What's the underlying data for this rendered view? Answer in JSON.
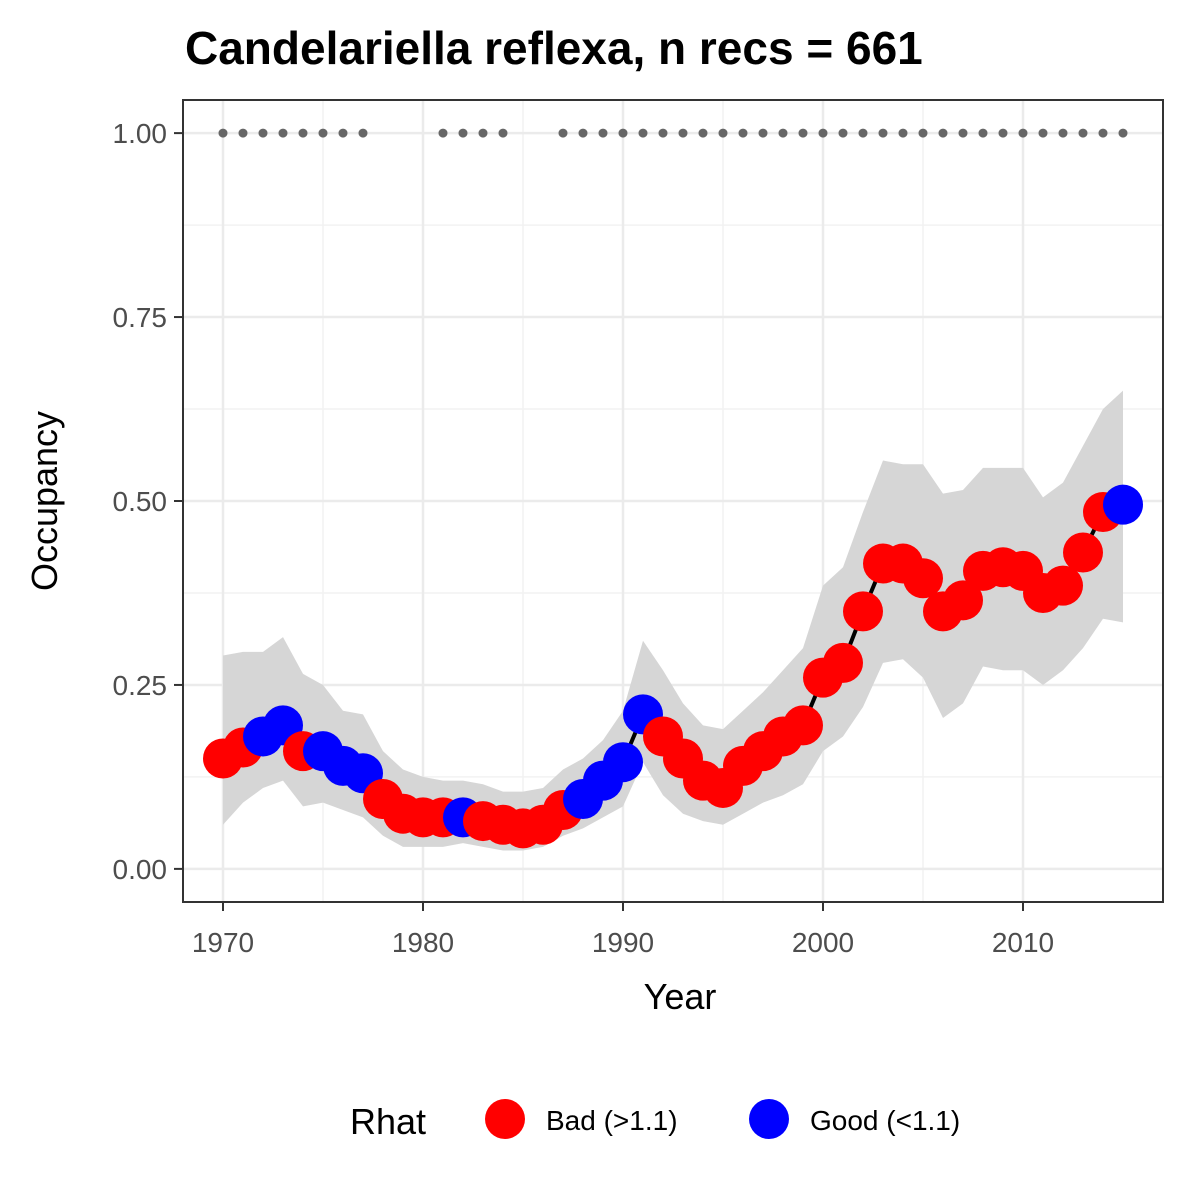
{
  "chart_data": {
    "type": "line",
    "title": "Candelariella reflexa, n recs = 661",
    "xlabel": "Year",
    "ylabel": "Occupancy",
    "xlim": [
      1968,
      2017
    ],
    "ylim": [
      -0.045,
      1.045
    ],
    "x_ticks": [
      1970,
      1980,
      1990,
      2000,
      2010
    ],
    "y_ticks": [
      0.0,
      0.25,
      0.5,
      0.75,
      1.0
    ],
    "y_tick_labels": [
      "0.00",
      "0.25",
      "0.50",
      "0.75",
      "1.00"
    ],
    "grid": true,
    "legend": {
      "title": "Rhat",
      "position": "bottom",
      "entries": [
        {
          "label": "Bad (>1.1)",
          "color": "#ff0000"
        },
        {
          "label": "Good (<1.1)",
          "color": "#0000ff"
        }
      ]
    },
    "colors": {
      "bad": "#ff0000",
      "good": "#0000ff",
      "ribbon": "#d6d6d6",
      "line": "#000000",
      "record_dots": "#666666"
    },
    "series": [
      {
        "x": [
          1970,
          1971,
          1972,
          1973,
          1974,
          1975,
          1976,
          1977,
          1978,
          1979,
          1980,
          1981,
          1982,
          1983,
          1984,
          1985,
          1986,
          1987,
          1988,
          1989,
          1990,
          1991,
          1992,
          1993,
          1994,
          1995,
          1996,
          1997,
          1998,
          1999,
          2000,
          2001,
          2002,
          2003,
          2004,
          2005,
          2006,
          2007,
          2008,
          2009,
          2010,
          2011,
          2012,
          2013,
          2014,
          2015
        ],
        "occupancy": [
          0.15,
          0.165,
          0.18,
          0.195,
          0.16,
          0.16,
          0.14,
          0.13,
          0.095,
          0.075,
          0.07,
          0.07,
          0.07,
          0.065,
          0.06,
          0.055,
          0.06,
          0.08,
          0.095,
          0.12,
          0.145,
          0.21,
          0.18,
          0.15,
          0.12,
          0.11,
          0.14,
          0.16,
          0.18,
          0.195,
          0.26,
          0.28,
          0.35,
          0.415,
          0.415,
          0.395,
          0.35,
          0.365,
          0.405,
          0.41,
          0.405,
          0.375,
          0.385,
          0.43,
          0.485,
          0.495
        ],
        "lower": [
          0.06,
          0.09,
          0.11,
          0.12,
          0.085,
          0.09,
          0.08,
          0.07,
          0.045,
          0.03,
          0.03,
          0.03,
          0.035,
          0.03,
          0.025,
          0.025,
          0.03,
          0.045,
          0.055,
          0.07,
          0.085,
          0.145,
          0.1,
          0.075,
          0.065,
          0.06,
          0.075,
          0.09,
          0.1,
          0.115,
          0.16,
          0.18,
          0.22,
          0.28,
          0.285,
          0.26,
          0.205,
          0.225,
          0.275,
          0.27,
          0.27,
          0.25,
          0.27,
          0.3,
          0.34,
          0.335
        ],
        "upper": [
          0.29,
          0.295,
          0.295,
          0.315,
          0.265,
          0.25,
          0.215,
          0.21,
          0.16,
          0.135,
          0.125,
          0.12,
          0.12,
          0.115,
          0.105,
          0.105,
          0.11,
          0.135,
          0.15,
          0.175,
          0.215,
          0.31,
          0.27,
          0.225,
          0.195,
          0.19,
          0.215,
          0.24,
          0.27,
          0.3,
          0.385,
          0.41,
          0.485,
          0.555,
          0.55,
          0.55,
          0.51,
          0.515,
          0.545,
          0.545,
          0.545,
          0.505,
          0.525,
          0.575,
          0.625,
          0.65
        ],
        "rhat": [
          "Bad",
          "Bad",
          "Good",
          "Good",
          "Bad",
          "Good",
          "Good",
          "Good",
          "Bad",
          "Bad",
          "Bad",
          "Bad",
          "Good",
          "Bad",
          "Bad",
          "Bad",
          "Bad",
          "Bad",
          "Good",
          "Good",
          "Good",
          "Good",
          "Bad",
          "Bad",
          "Bad",
          "Bad",
          "Bad",
          "Bad",
          "Bad",
          "Bad",
          "Bad",
          "Bad",
          "Bad",
          "Bad",
          "Bad",
          "Bad",
          "Bad",
          "Bad",
          "Bad",
          "Bad",
          "Bad",
          "Bad",
          "Bad",
          "Bad",
          "Bad",
          "Good"
        ]
      }
    ],
    "record_years": [
      1970,
      1971,
      1972,
      1973,
      1974,
      1975,
      1976,
      1977,
      1981,
      1982,
      1983,
      1984,
      1987,
      1988,
      1989,
      1990,
      1991,
      1992,
      1993,
      1994,
      1995,
      1996,
      1997,
      1998,
      1999,
      2000,
      2001,
      2002,
      2003,
      2004,
      2005,
      2006,
      2007,
      2008,
      2009,
      2010,
      2011,
      2012,
      2013,
      2014,
      2015
    ],
    "record_value": 1.0
  }
}
